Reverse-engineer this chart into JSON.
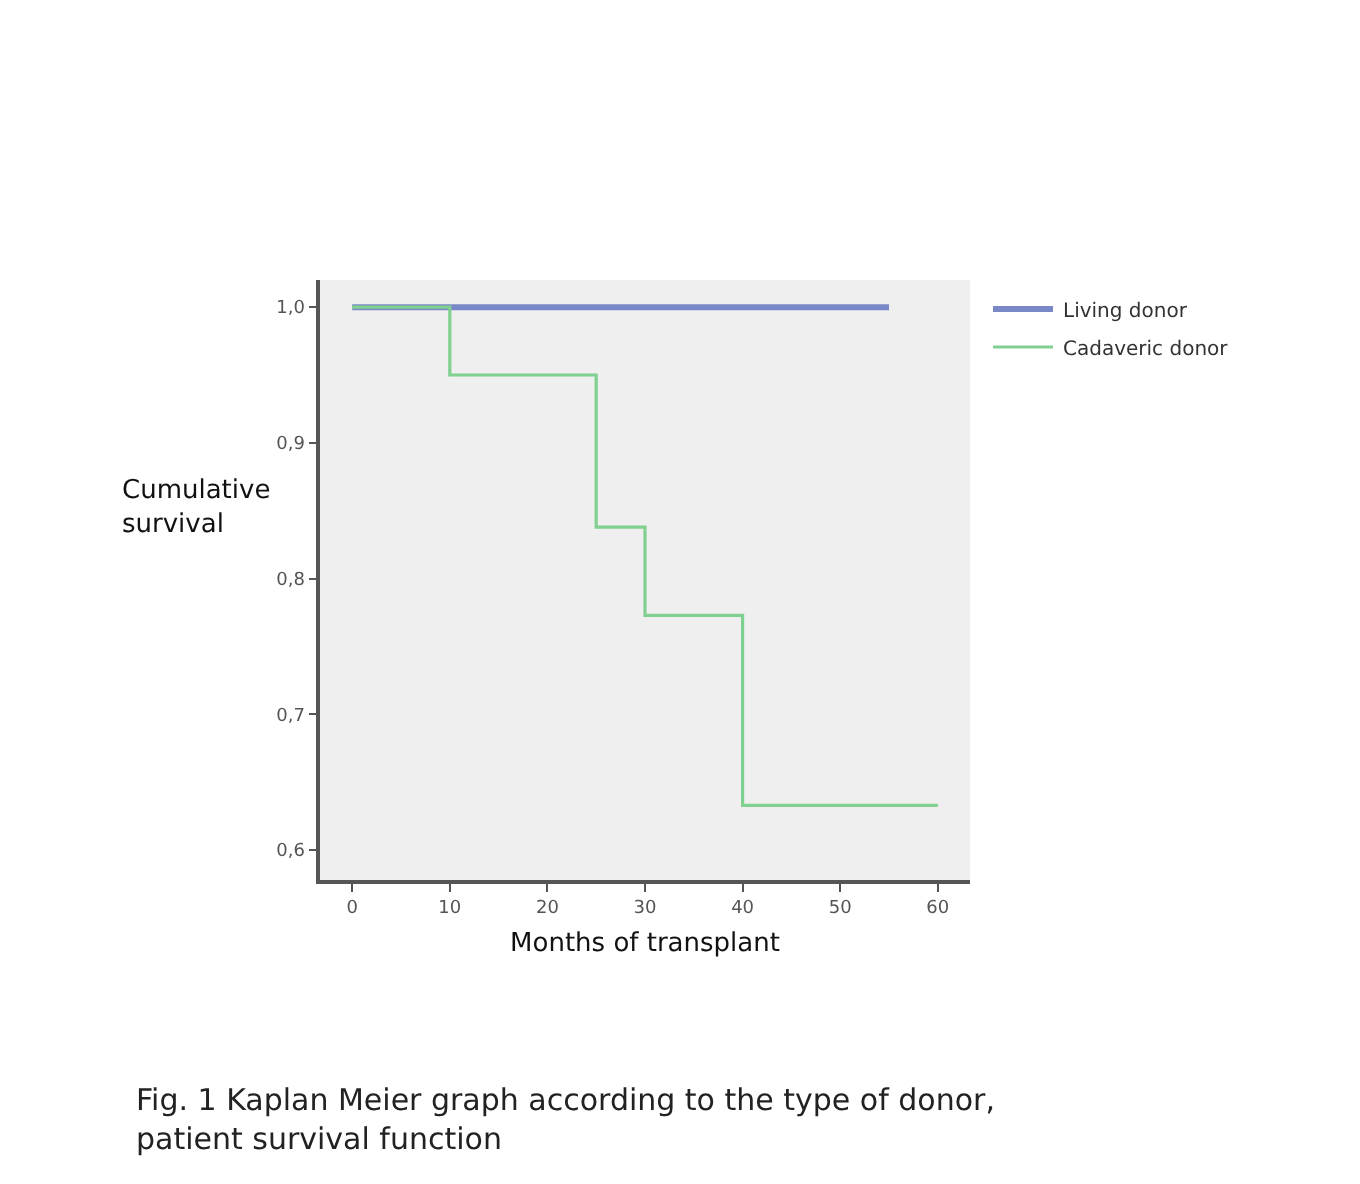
{
  "chart_data": {
    "type": "step",
    "xlabel": "Months of transplant",
    "ylabel": "Cumulative\nsurvival",
    "series": [
      {
        "name": "Living donor",
        "color": "#7b88c8",
        "x": [
          0,
          55
        ],
        "values": [
          1.0,
          1.0
        ]
      },
      {
        "name": "Cadaveric donor",
        "color": "#80d090",
        "x": [
          0,
          10,
          25,
          30,
          40,
          60
        ],
        "values": [
          1.0,
          0.95,
          0.838,
          0.773,
          0.633,
          0.633
        ]
      }
    ],
    "xlim": [
      -3.3,
      63.3
    ],
    "xticks": [
      0,
      10,
      20,
      30,
      40,
      50,
      60
    ],
    "ylim": [
      0.578,
      1.02
    ],
    "yticks": [
      {
        "value": 0.6,
        "label": "0,6"
      },
      {
        "value": 0.7,
        "label": "0,7"
      },
      {
        "value": 0.8,
        "label": "0,8"
      },
      {
        "value": 0.9,
        "label": "0,9"
      },
      {
        "value": 1.0,
        "label": "1,0"
      }
    ],
    "grid": false,
    "legend": "top right",
    "marker": "none",
    "line_style": "solid",
    "annotations": [
      "Fig. 1 Kaplan Meier graph according to the type of donor,\npatient survival function"
    ]
  }
}
